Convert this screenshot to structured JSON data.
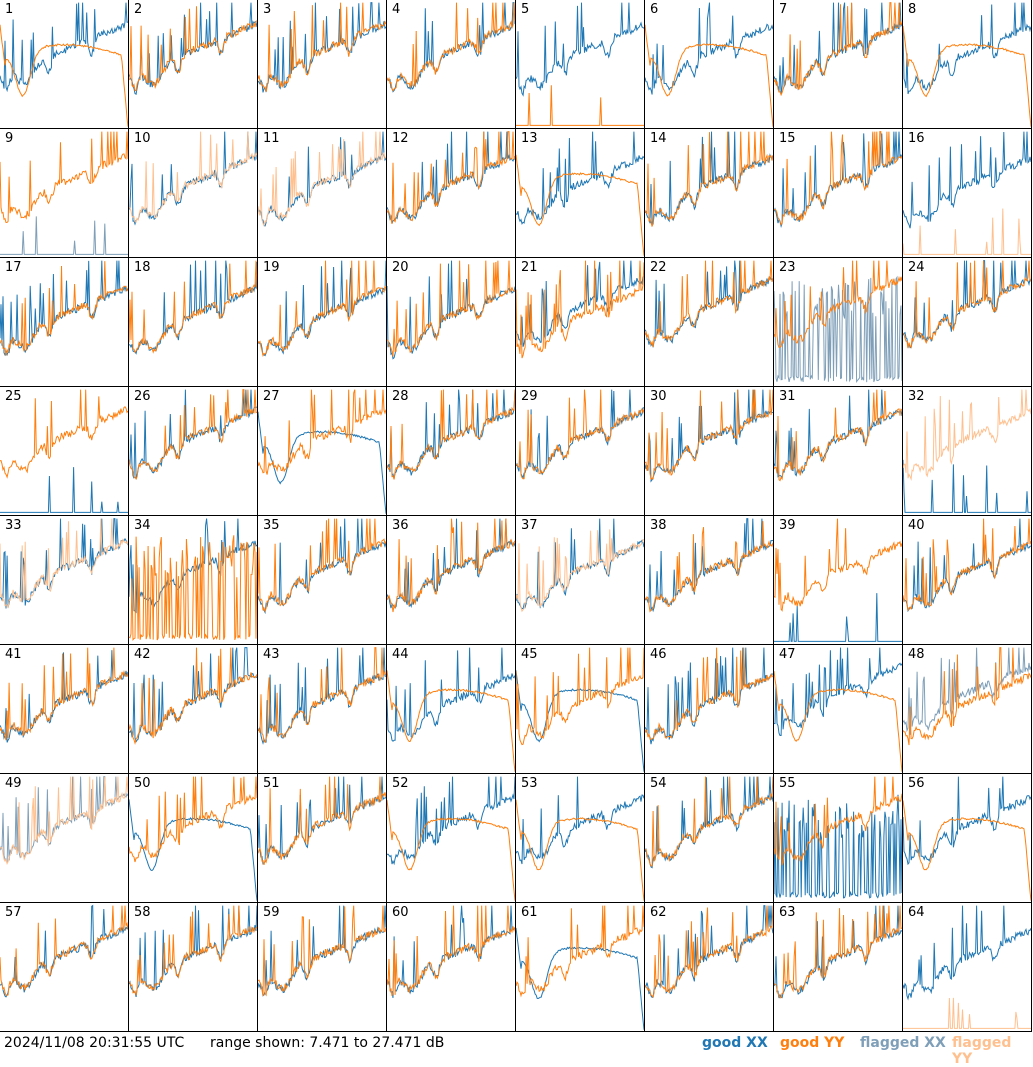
{
  "footer": {
    "timestamp": "2024/11/08 20:31:55 UTC",
    "range_text": "range shown: 7.471 to 27.471 dB"
  },
  "legend": [
    {
      "label": "good XX",
      "color": "#1f77b4"
    },
    {
      "label": "good YY",
      "color": "#ff7f0e"
    },
    {
      "label": "flagged XX",
      "color": "#7f9fb8"
    },
    {
      "label": "flagged YY",
      "color": "#ffc08f"
    }
  ],
  "chart_data": {
    "type": "line",
    "title": "",
    "xlabel": "",
    "ylabel": "",
    "ylim": [
      7.471,
      27.471
    ],
    "unit": "dB",
    "grid": false,
    "legend_placement": "bottom-right",
    "panels": [
      {
        "id": "1",
        "xx": "good",
        "yy": "good",
        "yy_shape": "smooth"
      },
      {
        "id": "2",
        "xx": "good",
        "yy": "good"
      },
      {
        "id": "3",
        "xx": "good",
        "yy": "good"
      },
      {
        "id": "4",
        "xx": "good",
        "yy": "good"
      },
      {
        "id": "5",
        "xx": "good",
        "yy": "good",
        "yy_shape": "spikes"
      },
      {
        "id": "6",
        "xx": "good",
        "yy": "good",
        "yy_shape": "smooth"
      },
      {
        "id": "7",
        "xx": "good",
        "yy": "good"
      },
      {
        "id": "8",
        "xx": "good",
        "yy": "good",
        "yy_shape": "smooth"
      },
      {
        "id": "9",
        "xx": "flagged",
        "yy": "good",
        "xx_shape": "spikes"
      },
      {
        "id": "10",
        "xx": "good",
        "yy": "flagged"
      },
      {
        "id": "11",
        "xx": "good",
        "yy": "flagged"
      },
      {
        "id": "12",
        "xx": "good",
        "yy": "good"
      },
      {
        "id": "13",
        "xx": "good",
        "yy": "good",
        "yy_shape": "smooth"
      },
      {
        "id": "14",
        "xx": "good",
        "yy": "good"
      },
      {
        "id": "15",
        "xx": "good",
        "yy": "good"
      },
      {
        "id": "16",
        "xx": "good",
        "yy": "flagged",
        "yy_shape": "spikes"
      },
      {
        "id": "17",
        "xx": "good",
        "yy": "good"
      },
      {
        "id": "18",
        "xx": "good",
        "yy": "good"
      },
      {
        "id": "19",
        "xx": "good",
        "yy": "good"
      },
      {
        "id": "20",
        "xx": "good",
        "yy": "good"
      },
      {
        "id": "21",
        "xx": "good",
        "yy": "good"
      },
      {
        "id": "22",
        "xx": "good",
        "yy": "good"
      },
      {
        "id": "23",
        "xx": "flagged",
        "yy": "good",
        "xx_shape": "dropout"
      },
      {
        "id": "24",
        "xx": "good",
        "yy": "good"
      },
      {
        "id": "25",
        "xx": "good",
        "yy": "good",
        "xx_shape": "spikes"
      },
      {
        "id": "26",
        "xx": "good",
        "yy": "good"
      },
      {
        "id": "27",
        "xx": "good",
        "yy": "good",
        "xx_shape": "smooth"
      },
      {
        "id": "28",
        "xx": "good",
        "yy": "good"
      },
      {
        "id": "29",
        "xx": "good",
        "yy": "good"
      },
      {
        "id": "30",
        "xx": "good",
        "yy": "good"
      },
      {
        "id": "31",
        "xx": "good",
        "yy": "good"
      },
      {
        "id": "32",
        "xx": "good",
        "yy": "flagged",
        "xx_shape": "spikes"
      },
      {
        "id": "33",
        "xx": "good",
        "yy": "flagged"
      },
      {
        "id": "34",
        "xx": "good",
        "yy": "good",
        "yy_shape": "dropout"
      },
      {
        "id": "35",
        "xx": "good",
        "yy": "good"
      },
      {
        "id": "36",
        "xx": "good",
        "yy": "good"
      },
      {
        "id": "37",
        "xx": "good",
        "yy": "flagged"
      },
      {
        "id": "38",
        "xx": "good",
        "yy": "good"
      },
      {
        "id": "39",
        "xx": "good",
        "yy": "good",
        "xx_shape": "spikes"
      },
      {
        "id": "40",
        "xx": "good",
        "yy": "good"
      },
      {
        "id": "41",
        "xx": "good",
        "yy": "good"
      },
      {
        "id": "42",
        "xx": "good",
        "yy": "good"
      },
      {
        "id": "43",
        "xx": "good",
        "yy": "good"
      },
      {
        "id": "44",
        "xx": "good",
        "yy": "good",
        "yy_shape": "smooth"
      },
      {
        "id": "45",
        "xx": "good",
        "yy": "good",
        "xx_shape": "smooth"
      },
      {
        "id": "46",
        "xx": "good",
        "yy": "good"
      },
      {
        "id": "47",
        "xx": "good",
        "yy": "good",
        "yy_shape": "smooth"
      },
      {
        "id": "48",
        "xx": "flagged",
        "yy": "good"
      },
      {
        "id": "49",
        "xx": "flagged",
        "yy": "flagged"
      },
      {
        "id": "50",
        "xx": "good",
        "yy": "good",
        "xx_shape": "smooth"
      },
      {
        "id": "51",
        "xx": "good",
        "yy": "good"
      },
      {
        "id": "52",
        "xx": "good",
        "yy": "good",
        "yy_shape": "smooth"
      },
      {
        "id": "53",
        "xx": "good",
        "yy": "good",
        "yy_shape": "smooth"
      },
      {
        "id": "54",
        "xx": "good",
        "yy": "good"
      },
      {
        "id": "55",
        "xx": "good",
        "yy": "good",
        "xx_shape": "dropout"
      },
      {
        "id": "56",
        "xx": "good",
        "yy": "good",
        "yy_shape": "smooth"
      },
      {
        "id": "57",
        "xx": "good",
        "yy": "good"
      },
      {
        "id": "58",
        "xx": "good",
        "yy": "good"
      },
      {
        "id": "59",
        "xx": "good",
        "yy": "good"
      },
      {
        "id": "60",
        "xx": "good",
        "yy": "good"
      },
      {
        "id": "61",
        "xx": "good",
        "yy": "good",
        "xx_shape": "smooth"
      },
      {
        "id": "62",
        "xx": "good",
        "yy": "good"
      },
      {
        "id": "63",
        "xx": "good",
        "yy": "good"
      },
      {
        "id": "64",
        "xx": "good",
        "yy": "flagged",
        "yy_shape": "spikes"
      }
    ]
  }
}
